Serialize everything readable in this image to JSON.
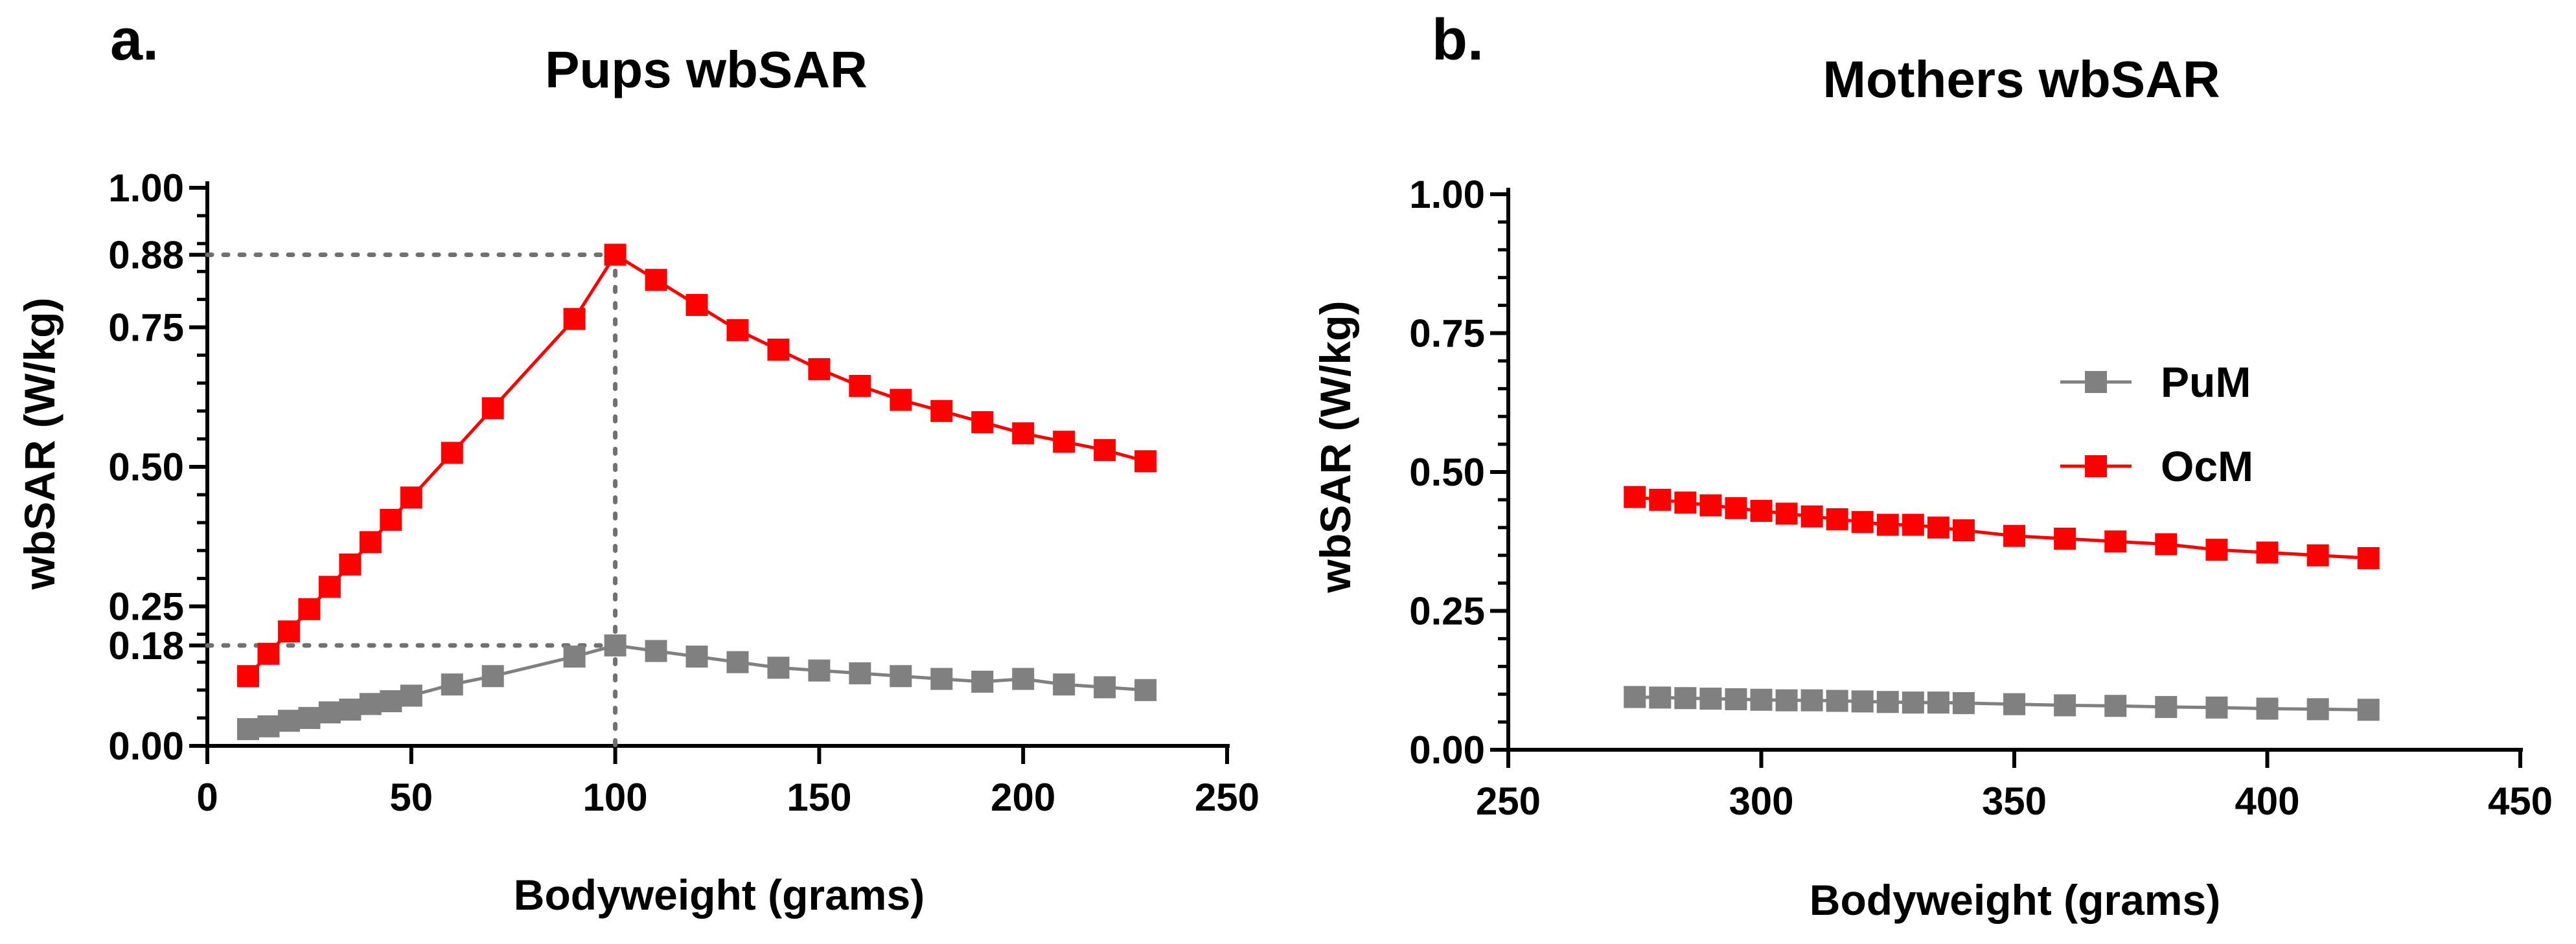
{
  "chart_data": [
    {
      "type": "line",
      "panel_label": "a.",
      "title": "Pups wbSAR",
      "xlabel": "Bodyweight (grams)",
      "ylabel": "wbSAR (W/kg)",
      "xlim": [
        0,
        250
      ],
      "ylim": [
        0,
        1.0
      ],
      "xticks": [
        0,
        50,
        100,
        150,
        200,
        250
      ],
      "yticks": [
        0.0,
        0.18,
        0.25,
        0.5,
        0.75,
        0.88,
        1.0
      ],
      "ytick_labels": [
        "0.00",
        "0.18",
        "0.25",
        "0.50",
        "0.75",
        "0.88",
        "1.00"
      ],
      "reference_lines": [
        {
          "x": 100,
          "y": 0.88
        },
        {
          "x": 100,
          "y": 0.18
        }
      ],
      "series": [
        {
          "name": "PuM",
          "color": "#808080",
          "x": [
            10,
            15,
            20,
            25,
            30,
            35,
            40,
            45,
            50,
            60,
            70,
            90,
            100,
            110,
            120,
            130,
            140,
            150,
            160,
            170,
            180,
            190,
            200,
            210,
            220,
            230
          ],
          "y": [
            0.03,
            0.035,
            0.045,
            0.05,
            0.06,
            0.065,
            0.075,
            0.08,
            0.09,
            0.11,
            0.125,
            0.16,
            0.18,
            0.17,
            0.16,
            0.15,
            0.14,
            0.135,
            0.13,
            0.125,
            0.12,
            0.115,
            0.12,
            0.11,
            0.105,
            0.1
          ]
        },
        {
          "name": "OcM",
          "color": "#ff0000",
          "x": [
            10,
            15,
            20,
            25,
            30,
            35,
            40,
            45,
            50,
            60,
            70,
            90,
            100,
            110,
            120,
            130,
            140,
            150,
            160,
            170,
            180,
            190,
            200,
            210,
            220,
            230
          ],
          "y": [
            0.125,
            0.165,
            0.205,
            0.245,
            0.285,
            0.325,
            0.365,
            0.405,
            0.445,
            0.525,
            0.605,
            0.765,
            0.88,
            0.835,
            0.79,
            0.745,
            0.71,
            0.675,
            0.645,
            0.62,
            0.6,
            0.58,
            0.56,
            0.545,
            0.53,
            0.51
          ]
        }
      ]
    },
    {
      "type": "line",
      "panel_label": "b.",
      "title": "Mothers wbSAR",
      "xlabel": "Bodyweight (grams)",
      "ylabel": "wbSAR (W/kg)",
      "xlim": [
        250,
        450
      ],
      "ylim": [
        0,
        1.0
      ],
      "xticks": [
        250,
        300,
        350,
        400,
        450
      ],
      "yticks": [
        0.0,
        0.25,
        0.5,
        0.75,
        1.0
      ],
      "ytick_labels": [
        "0.00",
        "0.25",
        "0.50",
        "0.75",
        "1.00"
      ],
      "legend": {
        "position": "right",
        "entries": [
          "PuM",
          "OcM"
        ]
      },
      "series": [
        {
          "name": "PuM",
          "color": "#808080",
          "x": [
            275,
            280,
            285,
            290,
            295,
            300,
            305,
            310,
            315,
            320,
            325,
            330,
            335,
            340,
            350,
            360,
            370,
            380,
            390,
            400,
            410,
            420
          ],
          "y": [
            0.095,
            0.094,
            0.093,
            0.092,
            0.091,
            0.09,
            0.089,
            0.089,
            0.088,
            0.087,
            0.086,
            0.085,
            0.085,
            0.084,
            0.082,
            0.08,
            0.079,
            0.077,
            0.076,
            0.074,
            0.073,
            0.072
          ]
        },
        {
          "name": "OcM",
          "color": "#ff0000",
          "x": [
            275,
            280,
            285,
            290,
            295,
            300,
            305,
            310,
            315,
            320,
            325,
            330,
            335,
            340,
            350,
            360,
            370,
            380,
            390,
            400,
            410,
            420
          ],
          "y": [
            0.455,
            0.45,
            0.445,
            0.44,
            0.435,
            0.43,
            0.425,
            0.42,
            0.415,
            0.41,
            0.405,
            0.405,
            0.4,
            0.395,
            0.385,
            0.38,
            0.375,
            0.37,
            0.36,
            0.355,
            0.35,
            0.345
          ]
        }
      ]
    }
  ]
}
